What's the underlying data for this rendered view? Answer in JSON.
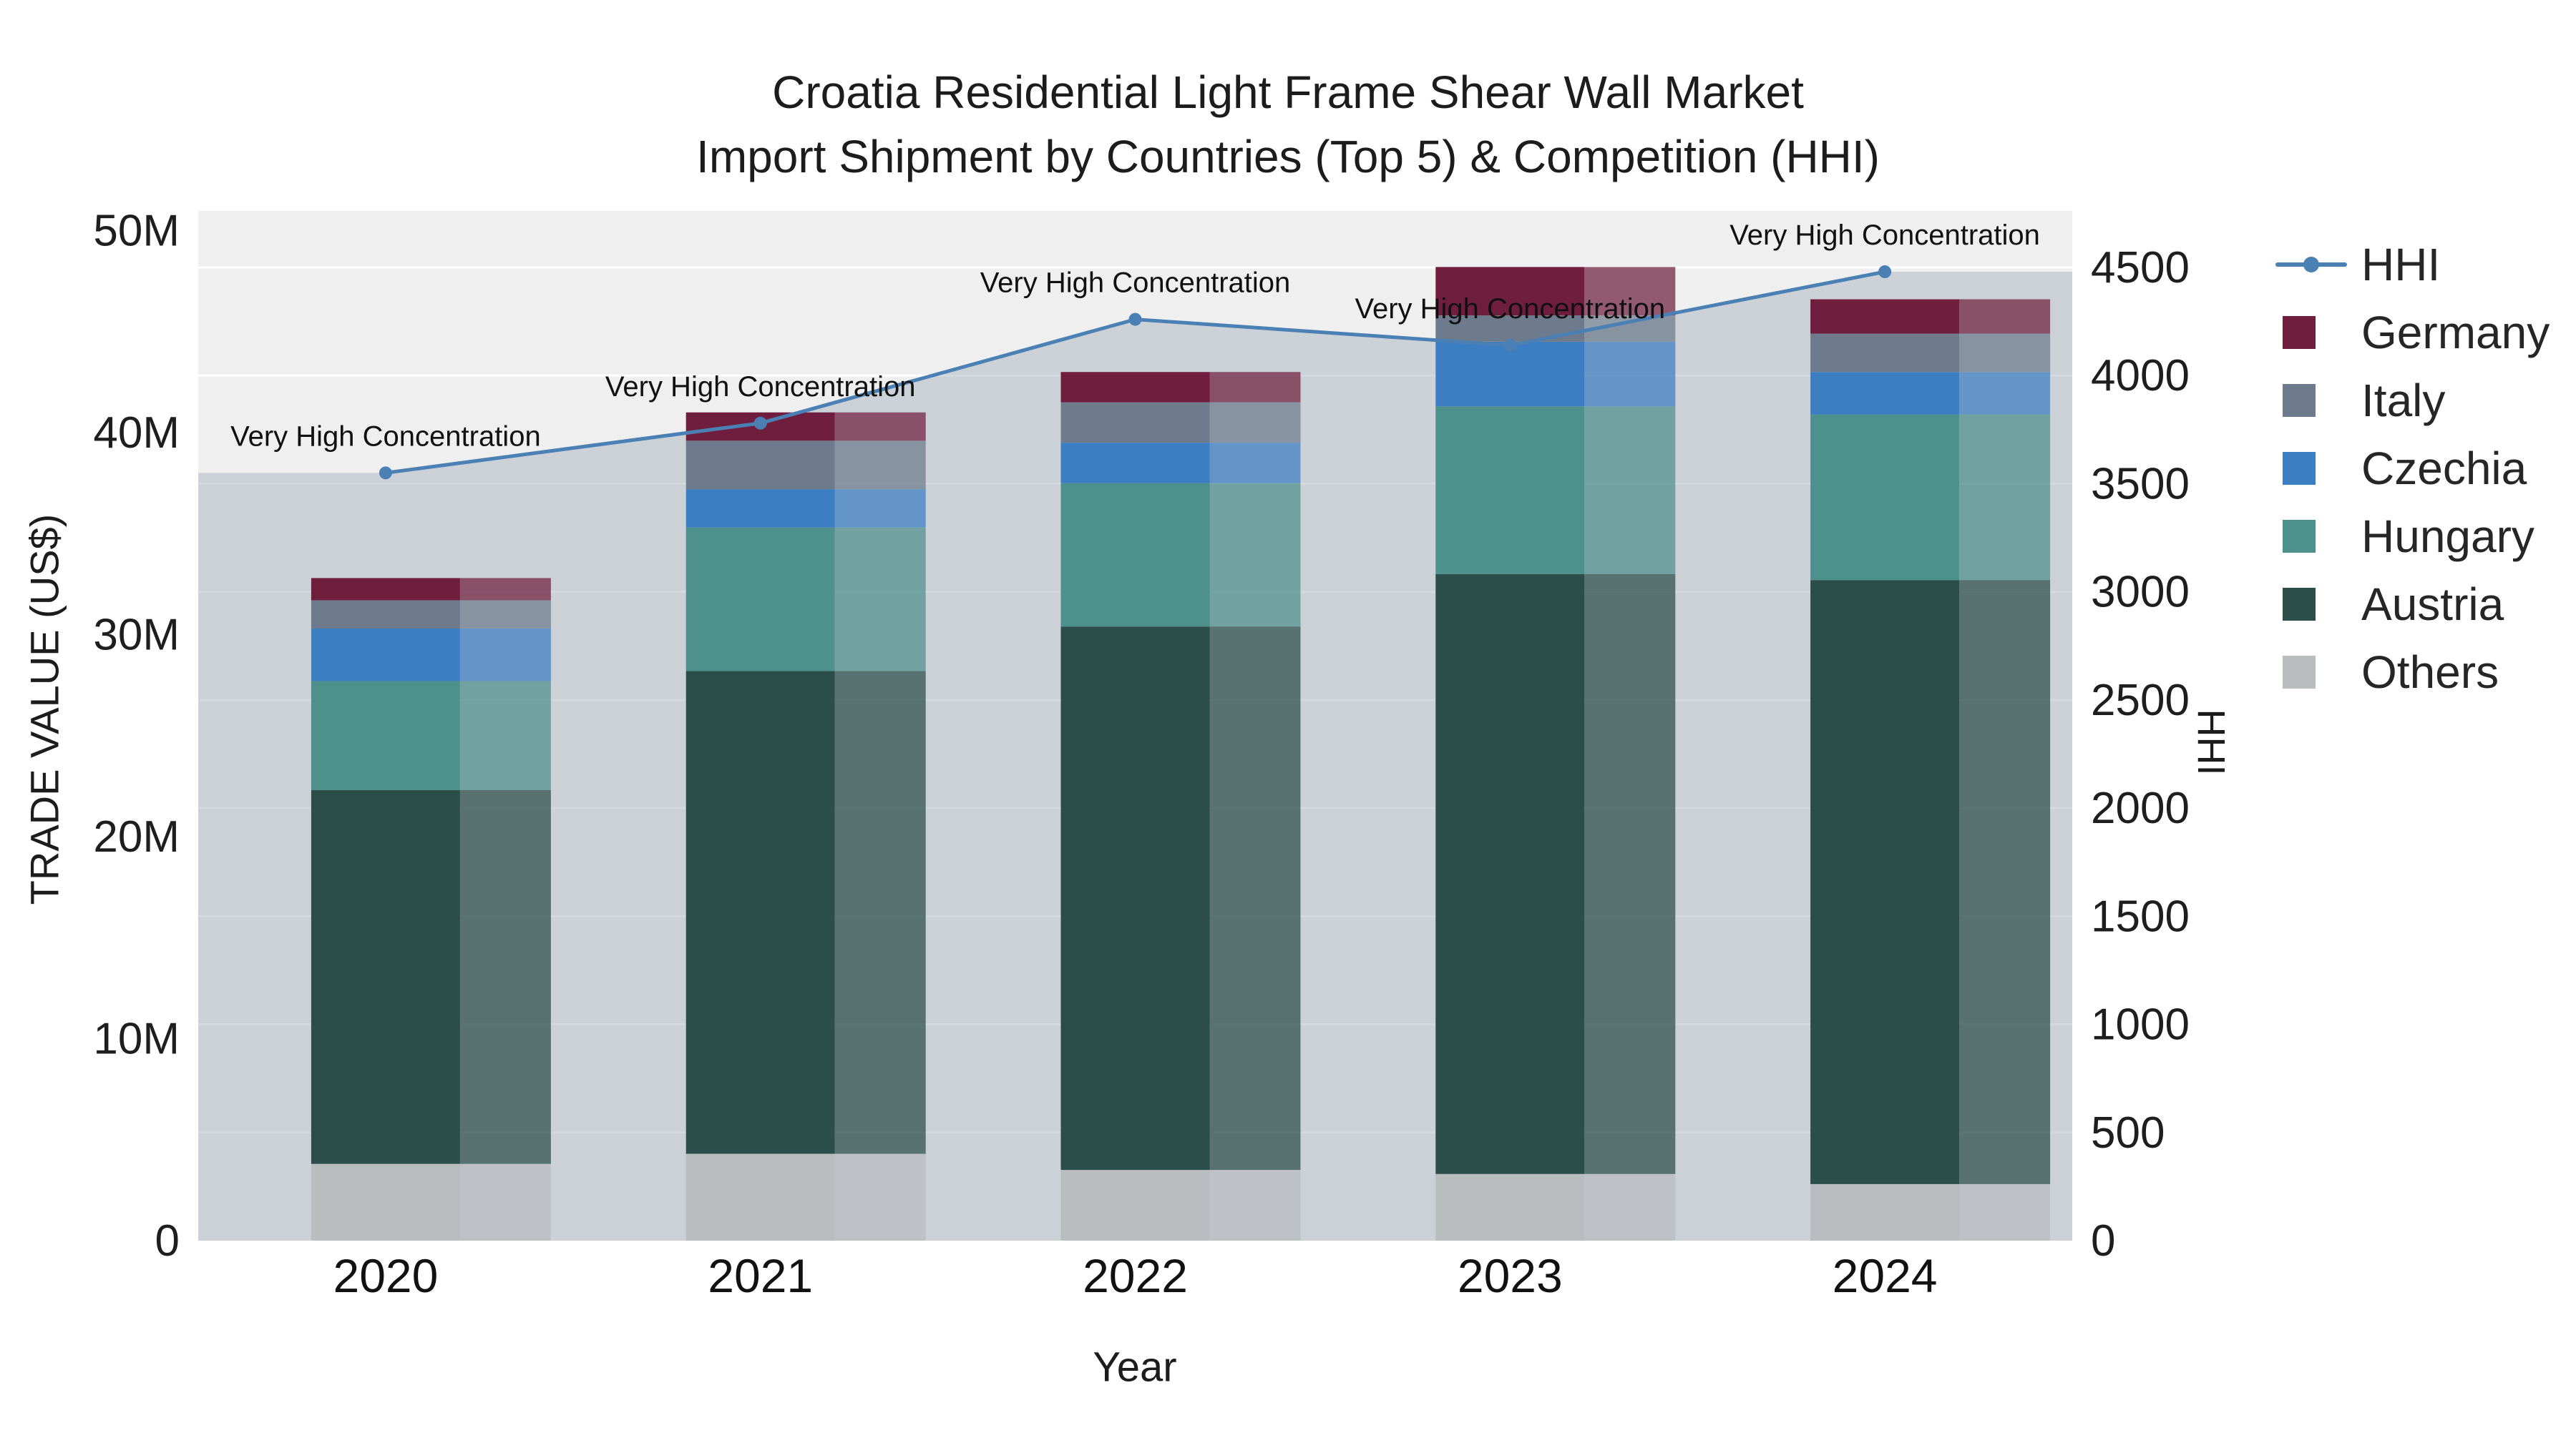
{
  "chart_data": {
    "type": "bar",
    "stacked": true,
    "title": "Croatia Residential Light Frame Shear Wall Market",
    "subtitle": "Import Shipment by Countries (Top 5) & Competition (HHI)",
    "xlabel": "Year",
    "ylabel_left": "TRADE VALUE (US$)",
    "ylabel_right": "HHI",
    "categories": [
      "2020",
      "2021",
      "2022",
      "2023",
      "2024"
    ],
    "value_unit": "millions USD",
    "plot_bg": "#efefef",
    "gridline_color": "#ffffff",
    "area_fill_color": "#a9b4c2",
    "series": [
      {
        "name": "Others",
        "color": "#b9bdc0",
        "values": [
          3.8,
          4.3,
          3.5,
          3.3,
          2.8
        ]
      },
      {
        "name": "Austria",
        "color": "#2b4e4b",
        "values": [
          18.5,
          23.9,
          26.9,
          29.7,
          29.9
        ]
      },
      {
        "name": "Hungary",
        "color": "#4e908c",
        "values": [
          5.4,
          7.1,
          7.1,
          8.3,
          8.2
        ]
      },
      {
        "name": "Czechia",
        "color": "#3c7ec2",
        "values": [
          2.6,
          1.9,
          2.0,
          3.2,
          2.1
        ]
      },
      {
        "name": "Italy",
        "color": "#6d7b8c",
        "values": [
          1.4,
          2.4,
          2.0,
          1.3,
          1.9
        ]
      },
      {
        "name": "Germany",
        "color": "#6f1f3d",
        "values": [
          1.1,
          1.4,
          1.5,
          2.4,
          1.7
        ]
      }
    ],
    "line_series": {
      "name": "HHI",
      "color": "#4a80b4",
      "axis": "right",
      "values": [
        3550,
        3780,
        4260,
        4140,
        4480
      ]
    },
    "annotations": [
      "Very High Concentration",
      "Very High Concentration",
      "Very High Concentration",
      "Very High Concentration",
      "Very High Concentration"
    ],
    "left_axis": {
      "values": [
        0,
        10,
        20,
        30,
        40,
        50
      ],
      "labels": [
        "0",
        "10M",
        "20M",
        "30M",
        "40M",
        "50M"
      ],
      "max": 51
    },
    "right_axis": {
      "values": [
        0,
        500,
        1000,
        1500,
        2000,
        2500,
        3000,
        3500,
        4000,
        4500
      ],
      "labels": [
        "0",
        "500",
        "1000",
        "1500",
        "2000",
        "2500",
        "3000",
        "3500",
        "4000",
        "4500"
      ],
      "max": 4765
    },
    "legend": [
      {
        "name": "HHI",
        "type": "line",
        "color": "#4a80b4"
      },
      {
        "name": "Germany",
        "type": "square",
        "color": "#6f1f3d"
      },
      {
        "name": "Italy",
        "type": "square",
        "color": "#6d7b8c"
      },
      {
        "name": "Czechia",
        "type": "square",
        "color": "#3c7ec2"
      },
      {
        "name": "Hungary",
        "type": "square",
        "color": "#4e908c"
      },
      {
        "name": "Austria",
        "type": "square",
        "color": "#2b4e4b"
      },
      {
        "name": "Others",
        "type": "square",
        "color": "#b9bdc0"
      }
    ]
  }
}
